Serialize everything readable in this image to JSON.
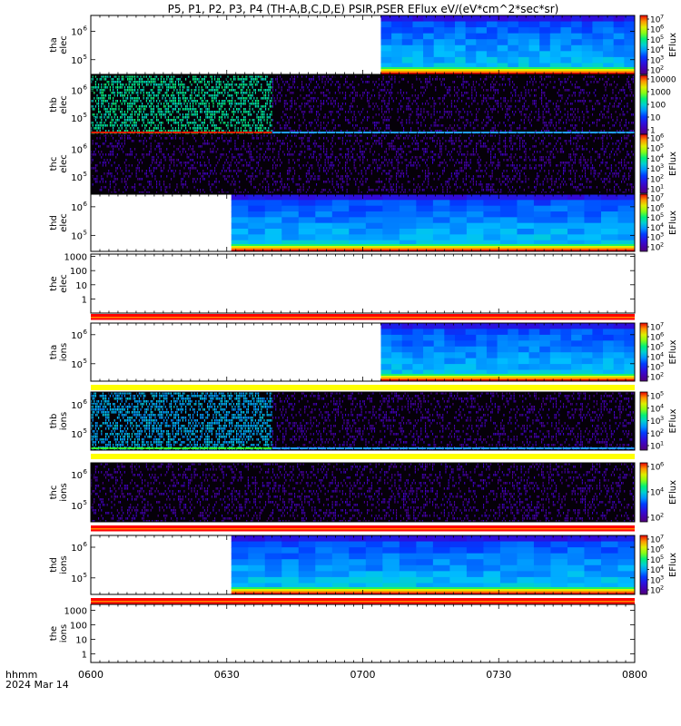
{
  "chart_data": {
    "type": "heatmap",
    "title": "P5, P1, P2, P3, P4 (TH-A,B,C,D,E) PSIR,PSER EFlux eV/(eV*cm^2*sec*sr)",
    "time_axis": {
      "label_line1": "hhmm",
      "label_line2": "2024 Mar 14",
      "range_minutes": [
        0,
        120
      ],
      "ticks": [
        {
          "minute": 0,
          "label": "0600"
        },
        {
          "minute": 30,
          "label": "0630"
        },
        {
          "minute": 60,
          "label": "0700"
        },
        {
          "minute": 90,
          "label": "0730"
        },
        {
          "minute": 120,
          "label": "0800"
        }
      ]
    },
    "colorbar_label": "EFlux",
    "panels": [
      {
        "id": "tha-elec",
        "probe": "tha",
        "species": "elec",
        "kind": "spectrogram",
        "data_start_minute": 64,
        "mode": "blue",
        "lowband": true,
        "yticks": [
          {
            "label": "10",
            "sup": "6",
            "f": 0.27
          },
          {
            "label": "10",
            "sup": "5",
            "f": 0.75
          }
        ],
        "cbar_ticks": [
          {
            "label": "10",
            "sup": "7"
          },
          {
            "label": "10",
            "sup": "6"
          },
          {
            "label": "10",
            "sup": "5"
          },
          {
            "label": "10",
            "sup": "4"
          },
          {
            "label": "10",
            "sup": "3"
          },
          {
            "label": "10",
            "sup": "2"
          }
        ],
        "cbar_label": "EFlux"
      },
      {
        "id": "thb-elec",
        "probe": "thb",
        "species": "elec",
        "kind": "spectrogram",
        "data_start_minute": 0,
        "mode": "noisy",
        "noisy_end_minute": 40,
        "lowband": true,
        "yticks": [
          {
            "label": "10",
            "sup": "6",
            "f": 0.25
          },
          {
            "label": "10",
            "sup": "5",
            "f": 0.72
          }
        ],
        "cbar_ticks": [
          {
            "label": "10000",
            "sup": ""
          },
          {
            "label": "1000",
            "sup": ""
          },
          {
            "label": "100",
            "sup": ""
          },
          {
            "label": "10",
            "sup": ""
          },
          {
            "label": "1",
            "sup": ""
          }
        ],
        "cbar_label": ""
      },
      {
        "id": "thc-elec",
        "probe": "thc",
        "species": "elec",
        "kind": "spectrogram",
        "data_start_minute": 0,
        "mode": "dark",
        "lowband": false,
        "yticks": [
          {
            "label": "10",
            "sup": "6",
            "f": 0.25
          },
          {
            "label": "10",
            "sup": "5",
            "f": 0.72
          }
        ],
        "cbar_ticks": [
          {
            "label": "10",
            "sup": "6"
          },
          {
            "label": "10",
            "sup": "5"
          },
          {
            "label": "10",
            "sup": "4"
          },
          {
            "label": "10",
            "sup": "3"
          },
          {
            "label": "10",
            "sup": "2"
          },
          {
            "label": "10",
            "sup": "1"
          }
        ],
        "cbar_label": "EFlux"
      },
      {
        "id": "thd-elec",
        "probe": "thd",
        "species": "elec",
        "kind": "spectrogram",
        "data_start_minute": 31,
        "mode": "blue",
        "lowband": true,
        "yticks": [
          {
            "label": "10",
            "sup": "6",
            "f": 0.22
          },
          {
            "label": "10",
            "sup": "5",
            "f": 0.72
          }
        ],
        "cbar_ticks": [
          {
            "label": "10",
            "sup": "7"
          },
          {
            "label": "10",
            "sup": "6"
          },
          {
            "label": "10",
            "sup": "5"
          },
          {
            "label": "10",
            "sup": "4"
          },
          {
            "label": "10",
            "sup": "3"
          },
          {
            "label": "10",
            "sup": "2"
          }
        ],
        "cbar_label": "EFlux"
      },
      {
        "id": "the-elec",
        "probe": "the",
        "species": "elec",
        "kind": "empty",
        "yticks": [
          {
            "label": "1000",
            "sup": "",
            "f": 0.04
          },
          {
            "label": "100",
            "sup": "",
            "f": 0.28
          },
          {
            "label": "10",
            "sup": "",
            "f": 0.52
          },
          {
            "label": "1",
            "sup": "",
            "f": 0.76
          }
        ],
        "stripe": "red"
      },
      {
        "id": "tha-ions",
        "probe": "tha",
        "species": "ions",
        "kind": "spectrogram",
        "data_start_minute": 64,
        "mode": "blue",
        "lowband": true,
        "yticks": [
          {
            "label": "10",
            "sup": "6",
            "f": 0.2
          },
          {
            "label": "10",
            "sup": "5",
            "f": 0.7
          }
        ],
        "cbar_ticks": [
          {
            "label": "10",
            "sup": "7"
          },
          {
            "label": "10",
            "sup": "6"
          },
          {
            "label": "10",
            "sup": "5"
          },
          {
            "label": "10",
            "sup": "4"
          },
          {
            "label": "10",
            "sup": "3"
          },
          {
            "label": "10",
            "sup": "2"
          }
        ],
        "cbar_label": "EFlux",
        "stripe": "yellow"
      },
      {
        "id": "thb-ions",
        "probe": "thb",
        "species": "ions",
        "kind": "spectrogram",
        "data_start_minute": 0,
        "mode": "noisy",
        "noisy_end_minute": 40,
        "lowband": true,
        "yticks": [
          {
            "label": "10",
            "sup": "6",
            "f": 0.22
          },
          {
            "label": "10",
            "sup": "5",
            "f": 0.72
          }
        ],
        "cbar_ticks": [
          {
            "label": "10",
            "sup": "5"
          },
          {
            "label": "10",
            "sup": "4"
          },
          {
            "label": "10",
            "sup": "3"
          },
          {
            "label": "10",
            "sup": "2"
          },
          {
            "label": "10",
            "sup": "1"
          }
        ],
        "cbar_label": "EFlux",
        "stripe": "yellow"
      },
      {
        "id": "thc-ions",
        "probe": "thc",
        "species": "ions",
        "kind": "spectrogram",
        "data_start_minute": 0,
        "mode": "dark",
        "lowband": false,
        "yticks": [
          {
            "label": "10",
            "sup": "6",
            "f": 0.2
          },
          {
            "label": "10",
            "sup": "5",
            "f": 0.72
          }
        ],
        "cbar_ticks": [
          {
            "label": "10",
            "sup": "6"
          },
          {
            "label": "10",
            "sup": "4"
          },
          {
            "label": "10",
            "sup": "2"
          }
        ],
        "cbar_label": "EFlux",
        "stripe": "red"
      },
      {
        "id": "thd-ions",
        "probe": "thd",
        "species": "ions",
        "kind": "spectrogram",
        "data_start_minute": 31,
        "mode": "blue",
        "lowband": true,
        "yticks": [
          {
            "label": "10",
            "sup": "6",
            "f": 0.2
          },
          {
            "label": "10",
            "sup": "5",
            "f": 0.72
          }
        ],
        "cbar_ticks": [
          {
            "label": "10",
            "sup": "7"
          },
          {
            "label": "10",
            "sup": "6"
          },
          {
            "label": "10",
            "sup": "5"
          },
          {
            "label": "10",
            "sup": "4"
          },
          {
            "label": "10",
            "sup": "3"
          },
          {
            "label": "10",
            "sup": "2"
          }
        ],
        "cbar_label": "EFlux",
        "stripe": "red"
      },
      {
        "id": "the-ions",
        "probe": "the",
        "species": "ions",
        "kind": "empty",
        "yticks": [
          {
            "label": "1000",
            "sup": "",
            "f": 0.1
          },
          {
            "label": "100",
            "sup": "",
            "f": 0.35
          },
          {
            "label": "10",
            "sup": "",
            "f": 0.6
          },
          {
            "label": "1",
            "sup": "",
            "f": 0.85
          }
        ]
      }
    ]
  }
}
